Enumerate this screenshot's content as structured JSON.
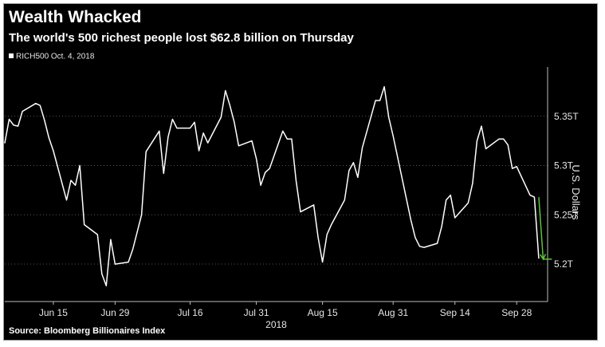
{
  "header": {
    "title": "Wealth Whacked",
    "subtitle": "The world's 500 richest people lost $62.8 billion on Thursday"
  },
  "footer": {
    "source": "Source: Bloomberg Billionaires Index"
  },
  "colors": {
    "background": "#000000",
    "line": "#ffffff",
    "drop_arrow": "#5fc23a",
    "grid": "#555555",
    "text": "#e6e6e6"
  },
  "chart_data": {
    "type": "line",
    "title": "Wealth Whacked",
    "subtitle": "The world's 500 richest people lost $62.8 billion on Thursday",
    "legend": {
      "entries": [
        "RICH500 Oct. 4, 2018"
      ],
      "placement": "top-left"
    },
    "xlabel": "2018",
    "ylabel": "U.S. Dollars",
    "xlim": [
      "2018-06-04",
      "2018-10-05"
    ],
    "ylim": [
      5.162,
      5.4
    ],
    "y_ticks": [
      5.2,
      5.25,
      5.3,
      5.35
    ],
    "y_tick_labels": [
      "5.2T",
      "5.25T",
      "5.3T",
      "5.35T"
    ],
    "x_ticks": [
      "2018-06-15",
      "2018-06-29",
      "2018-07-16",
      "2018-07-31",
      "2018-08-15",
      "2018-08-31",
      "2018-09-14",
      "2018-09-28"
    ],
    "x_tick_labels": [
      "Jun 15",
      "Jun 29",
      "Jul 16",
      "Jul 31",
      "Aug 15",
      "Aug 31",
      "Sep 14",
      "Sep 28"
    ],
    "year_label": "2018",
    "grid": "horizontal-dotted",
    "axis_side": "right",
    "series": [
      {
        "name": "RICH500",
        "x": [
          "2018-06-04",
          "2018-06-05",
          "2018-06-06",
          "2018-06-07",
          "2018-06-08",
          "2018-06-11",
          "2018-06-12",
          "2018-06-13",
          "2018-06-14",
          "2018-06-15",
          "2018-06-18",
          "2018-06-19",
          "2018-06-20",
          "2018-06-21",
          "2018-06-22",
          "2018-06-25",
          "2018-06-26",
          "2018-06-27",
          "2018-06-28",
          "2018-06-29",
          "2018-07-02",
          "2018-07-03",
          "2018-07-05",
          "2018-07-06",
          "2018-07-09",
          "2018-07-10",
          "2018-07-11",
          "2018-07-12",
          "2018-07-13",
          "2018-07-16",
          "2018-07-17",
          "2018-07-18",
          "2018-07-19",
          "2018-07-20",
          "2018-07-23",
          "2018-07-24",
          "2018-07-25",
          "2018-07-26",
          "2018-07-27",
          "2018-07-30",
          "2018-07-31",
          "2018-08-01",
          "2018-08-02",
          "2018-08-03",
          "2018-08-06",
          "2018-08-07",
          "2018-08-08",
          "2018-08-09",
          "2018-08-10",
          "2018-08-13",
          "2018-08-14",
          "2018-08-15",
          "2018-08-16",
          "2018-08-17",
          "2018-08-20",
          "2018-08-21",
          "2018-08-22",
          "2018-08-23",
          "2018-08-24",
          "2018-08-27",
          "2018-08-28",
          "2018-08-29",
          "2018-08-30",
          "2018-08-31",
          "2018-09-04",
          "2018-09-05",
          "2018-09-06",
          "2018-09-07",
          "2018-09-10",
          "2018-09-11",
          "2018-09-12",
          "2018-09-13",
          "2018-09-14",
          "2018-09-17",
          "2018-09-18",
          "2018-09-19",
          "2018-09-20",
          "2018-09-21",
          "2018-09-24",
          "2018-09-25",
          "2018-09-26",
          "2018-09-27",
          "2018-09-28",
          "2018-10-01",
          "2018-10-02",
          "2018-10-03"
        ],
        "values": [
          5.323,
          5.347,
          5.341,
          5.34,
          5.355,
          5.363,
          5.361,
          5.346,
          5.328,
          5.315,
          5.265,
          5.285,
          5.28,
          5.3,
          5.24,
          5.23,
          5.19,
          5.178,
          5.225,
          5.2,
          5.202,
          5.215,
          5.25,
          5.314,
          5.335,
          5.292,
          5.329,
          5.347,
          5.338,
          5.338,
          5.344,
          5.315,
          5.333,
          5.323,
          5.349,
          5.376,
          5.361,
          5.344,
          5.32,
          5.325,
          5.307,
          5.28,
          5.293,
          5.297,
          5.335,
          5.327,
          5.327,
          5.285,
          5.253,
          5.26,
          5.227,
          5.202,
          5.23,
          5.24,
          5.265,
          5.295,
          5.303,
          5.288,
          5.318,
          5.366,
          5.366,
          5.38,
          5.349,
          5.33,
          5.245,
          5.227,
          5.218,
          5.217,
          5.221,
          5.238,
          5.265,
          5.27,
          5.247,
          5.262,
          5.282,
          5.325,
          5.34,
          5.317,
          5.327,
          5.327,
          5.321,
          5.297,
          5.299,
          5.27,
          5.268,
          5.206
        ]
      }
    ],
    "annotations": [
      {
        "type": "arrow",
        "from": {
          "x": "2018-10-03",
          "y": 5.268
        },
        "to": {
          "x": "2018-10-04",
          "y": 5.205
        },
        "meaning": "Thursday drop"
      }
    ]
  }
}
